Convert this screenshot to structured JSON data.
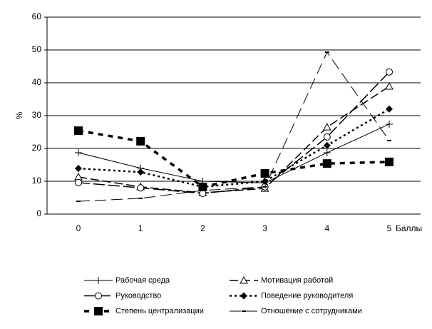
{
  "chart_data": {
    "type": "line",
    "ylabel": "%",
    "xlabel": "Баллы",
    "categories": [
      "0",
      "1",
      "2",
      "3",
      "4",
      "5"
    ],
    "ylim": [
      0,
      60
    ],
    "yticks": [
      0,
      10,
      20,
      30,
      40,
      50,
      60
    ],
    "grid": true,
    "legend": "bottom",
    "series": [
      {
        "name": "Рабочая среда",
        "color": "#000000",
        "marker": "plus",
        "dash": "solid",
        "values": [
          18.7,
          14.0,
          10.0,
          9.5,
          18.7,
          27.4
        ]
      },
      {
        "name": "Мотивация работой",
        "color": "#000000",
        "marker": "triangle",
        "dash": "dash",
        "values": [
          11.3,
          8.3,
          6.5,
          7.8,
          26.5,
          38.9
        ]
      },
      {
        "name": "Руководство",
        "color": "#000000",
        "marker": "circle",
        "dash": "longdash",
        "values": [
          9.6,
          8.0,
          6.3,
          8.3,
          23.5,
          43.3
        ]
      },
      {
        "name": "Поведение руководителя",
        "color": "#000000",
        "marker": "diamond",
        "dash": "dot",
        "values": [
          13.9,
          12.8,
          8.3,
          10.0,
          20.9,
          32.0
        ]
      },
      {
        "name": "Степень централизации",
        "color": "#000000",
        "marker": "square",
        "dash": "heavydash",
        "values": [
          25.4,
          22.2,
          8.3,
          12.4,
          15.4,
          15.9
        ]
      },
      {
        "name": "Отношение с сотрудниками",
        "color": "#000000",
        "marker": "bar",
        "dash": "thindash",
        "values": [
          3.9,
          4.8,
          7.2,
          8.3,
          49.3,
          22.4
        ]
      }
    ]
  }
}
